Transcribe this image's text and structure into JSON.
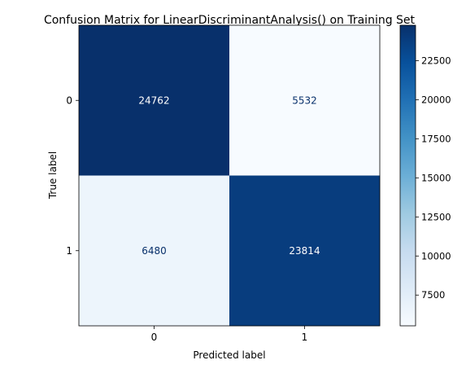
{
  "chart_data": {
    "type": "heatmap",
    "title": "Confusion Matrix for LinearDiscriminantAnalysis() on Training Set",
    "xlabel": "Predicted label",
    "ylabel": "True label",
    "x_categories": [
      "0",
      "1"
    ],
    "y_categories": [
      "0",
      "1"
    ],
    "values": [
      [
        24762,
        5532
      ],
      [
        6480,
        23814
      ]
    ],
    "colormap": "Blues",
    "colorbar": {
      "min": 5532,
      "max": 24762,
      "ticks": [
        7500,
        10000,
        12500,
        15000,
        17500,
        20000,
        22500
      ],
      "tick_labels": [
        "7500",
        "10000",
        "12500",
        "15000",
        "17500",
        "20000",
        "22500"
      ],
      "placement": "right"
    },
    "grid": false
  }
}
